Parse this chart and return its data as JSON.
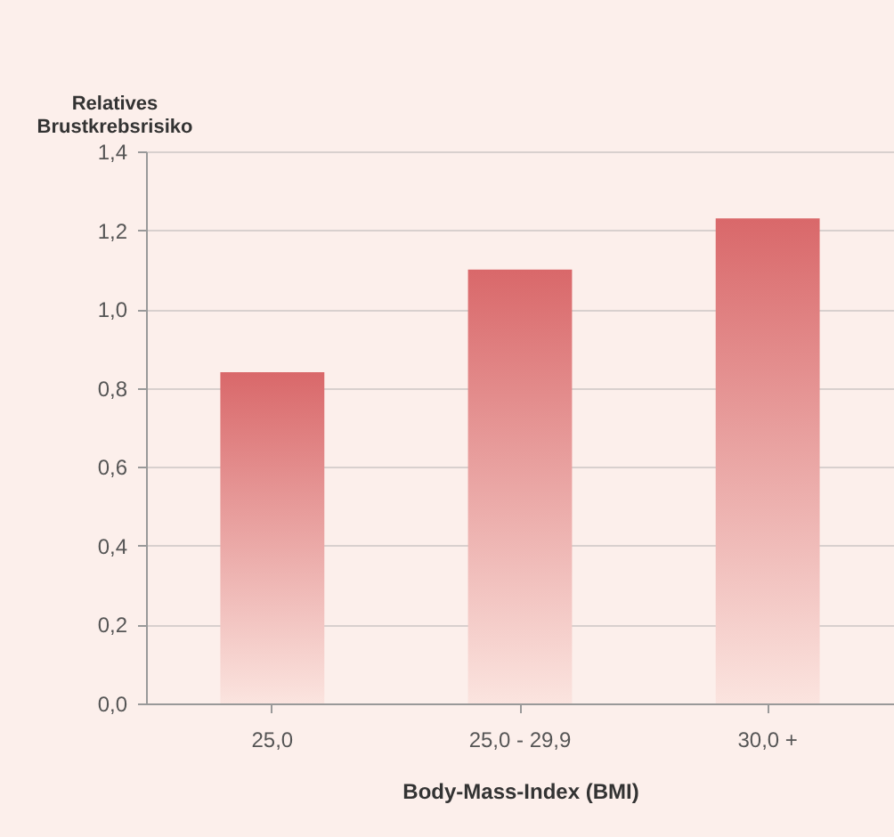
{
  "chart_data": {
    "type": "bar",
    "ylabel": "Relatives\nBrustkrebsrisiko",
    "xlabel": "Body-Mass-Index (BMI)",
    "categories": [
      "25,0",
      "25,0 - 29,9",
      "30,0 +"
    ],
    "values": [
      0.84,
      1.1,
      1.23
    ],
    "color": "#d9686a",
    "ylim": [
      0,
      1.4
    ],
    "yticks": [
      {
        "value": 0,
        "label": "0,0"
      },
      {
        "value": 0.2,
        "label": "0,2"
      },
      {
        "value": 0.4,
        "label": "0,4"
      },
      {
        "value": 0.6,
        "label": "0,6"
      },
      {
        "value": 0.8,
        "label": "0,8"
      },
      {
        "value": 1.0,
        "label": "1,0"
      },
      {
        "value": 1.2,
        "label": "1,2"
      },
      {
        "value": 1.4,
        "label": "1,4"
      }
    ],
    "grid": "y"
  }
}
